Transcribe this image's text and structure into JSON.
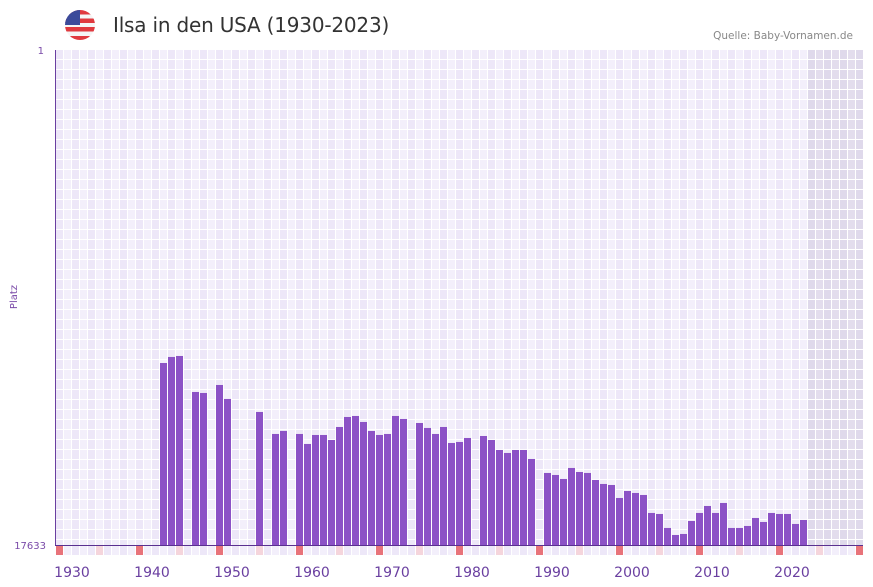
{
  "header": {
    "title": "Ilsa in den USA (1930-2023)",
    "source": "Quelle: Baby-Vornamen.de",
    "flag_icon": "us-flag-icon"
  },
  "chart_data": {
    "type": "bar",
    "title": "Ilsa in den USA (1930-2023)",
    "xlabel": "",
    "ylabel": "Platz",
    "y_top_label": "1",
    "y_bottom_label": "17633",
    "ylim": [
      17633,
      1
    ],
    "xlim": [
      1930,
      2030
    ],
    "x_tick_labels": [
      "1930",
      "1940",
      "1950",
      "1960",
      "1970",
      "1980",
      "1990",
      "2000",
      "2010",
      "2020"
    ],
    "grid": true,
    "bar_color": "#8c52c6",
    "marker_color_decade": "#e8737a",
    "marker_color_half": "#f5d5dc",
    "future_shade_from": 2024,
    "years": [
      1943,
      1944,
      1945,
      1947,
      1948,
      1950,
      1951,
      1955,
      1957,
      1958,
      1960,
      1961,
      1962,
      1963,
      1964,
      1965,
      1966,
      1967,
      1968,
      1969,
      1970,
      1971,
      1972,
      1973,
      1975,
      1976,
      1977,
      1978,
      1979,
      1980,
      1981,
      1983,
      1984,
      1985,
      1986,
      1987,
      1988,
      1989,
      1991,
      1992,
      1993,
      1994,
      1995,
      1996,
      1997,
      1998,
      1999,
      2000,
      2001,
      2002,
      2003,
      2004,
      2005,
      2006,
      2007,
      2008,
      2009,
      2010,
      2011,
      2012,
      2013,
      2014,
      2015,
      2016,
      2017,
      2018,
      2019,
      2020,
      2021,
      2022,
      2023
    ],
    "ranks": [
      11150,
      10935,
      10900,
      12182,
      12218,
      11933,
      12431,
      12894,
      13678,
      13571,
      13678,
      14034,
      13714,
      13714,
      13892,
      13429,
      13073,
      13037,
      13251,
      13571,
      13714,
      13678,
      13037,
      13144,
      13287,
      13464,
      13678,
      13429,
      13999,
      13963,
      13821,
      13750,
      13892,
      14248,
      14355,
      14248,
      14248,
      14569,
      15067,
      15139,
      15281,
      14889,
      15032,
      15067,
      15317,
      15459,
      15495,
      15958,
      15709,
      15780,
      15851,
      16492,
      16528,
      17026,
      17276,
      17240,
      16777,
      16492,
      16243,
      16492,
      16136,
      17026,
      17026,
      16955,
      16670,
      16813,
      16492,
      16528,
      16528,
      16884,
      16741
    ]
  }
}
